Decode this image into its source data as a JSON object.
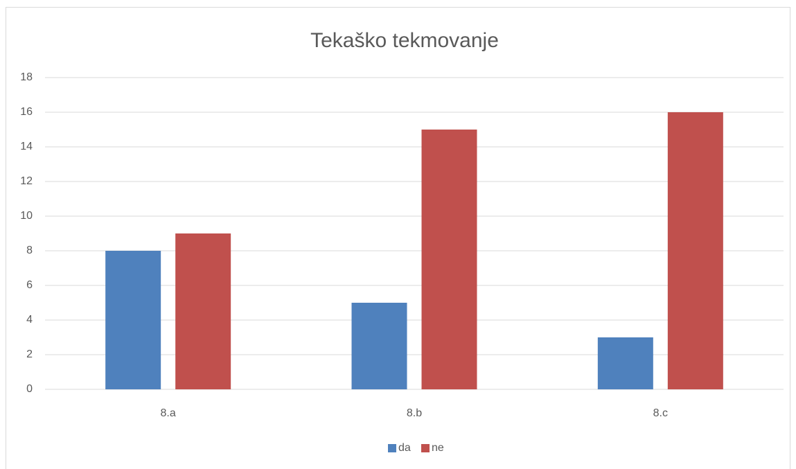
{
  "chart_data": {
    "type": "bar",
    "title": "Tekaško tekmovanje",
    "categories": [
      "8.a",
      "8.b",
      "8.c"
    ],
    "series": [
      {
        "name": "da",
        "color": "#4f81bd",
        "values": [
          8,
          5,
          3
        ]
      },
      {
        "name": "ne",
        "color": "#c0504d",
        "values": [
          9,
          15,
          16
        ]
      }
    ],
    "ylim": [
      0,
      18
    ],
    "yticks": [
      0,
      2,
      4,
      6,
      8,
      10,
      12,
      14,
      16,
      18
    ],
    "grid": true,
    "legend": "bottom"
  }
}
